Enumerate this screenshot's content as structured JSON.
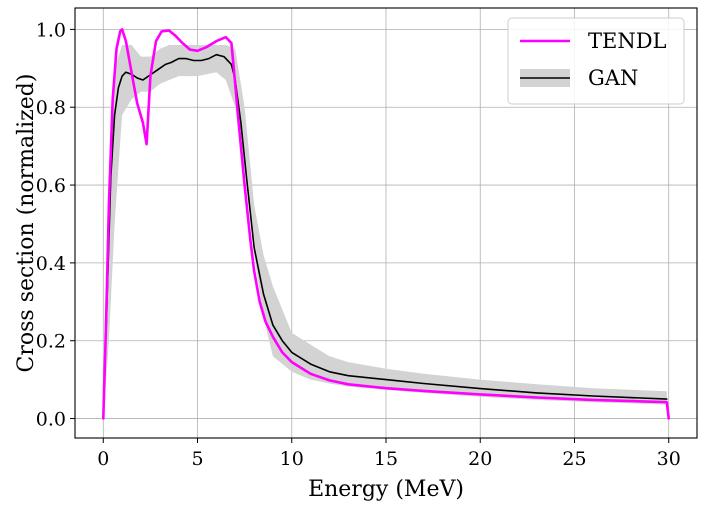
{
  "chart_data": {
    "type": "line",
    "title": "",
    "xlabel": "Energy (MeV)",
    "ylabel": "Cross section (normalized)",
    "xlim": [
      -1.5,
      31.5
    ],
    "ylim": [
      -0.05,
      1.055
    ],
    "xticks": [
      0,
      5,
      10,
      15,
      20,
      25,
      30
    ],
    "yticks": [
      0.0,
      0.2,
      0.4,
      0.6,
      0.8,
      1.0
    ],
    "xtick_labels": [
      "0",
      "5",
      "10",
      "15",
      "20",
      "25",
      "30"
    ],
    "ytick_labels": [
      "0.0",
      "0.2",
      "0.4",
      "0.6",
      "0.8",
      "1.0"
    ],
    "grid": true,
    "legend_position": "top-right",
    "colors": {
      "tendl": "#ff00ff",
      "gan": "#000000",
      "band": "#d3d3d3"
    },
    "series": [
      {
        "name": "TENDL",
        "style": "line",
        "x": [
          0,
          0.15,
          0.3,
          0.5,
          0.7,
          0.9,
          1.0,
          1.2,
          1.5,
          1.8,
          2.1,
          2.3,
          2.5,
          2.8,
          3.1,
          3.5,
          3.8,
          4.2,
          4.6,
          5.0,
          5.5,
          6.0,
          6.5,
          6.8,
          7.0,
          7.2,
          7.5,
          7.8,
          8.0,
          8.3,
          8.6,
          9.0,
          9.5,
          10,
          11,
          12,
          13,
          15,
          17,
          20,
          23,
          26,
          29.9,
          30.0
        ],
        "y": [
          0.0,
          0.25,
          0.55,
          0.82,
          0.95,
          0.995,
          1.0,
          0.97,
          0.89,
          0.81,
          0.76,
          0.705,
          0.88,
          0.97,
          0.995,
          0.997,
          0.985,
          0.965,
          0.948,
          0.945,
          0.955,
          0.97,
          0.98,
          0.965,
          0.86,
          0.75,
          0.6,
          0.46,
          0.38,
          0.3,
          0.25,
          0.21,
          0.17,
          0.145,
          0.115,
          0.098,
          0.088,
          0.078,
          0.071,
          0.062,
          0.054,
          0.048,
          0.042,
          0.0
        ]
      },
      {
        "name": "GAN",
        "style": "line",
        "x": [
          0,
          0.2,
          0.4,
          0.6,
          0.8,
          1.0,
          1.2,
          1.5,
          1.8,
          2.1,
          2.4,
          2.7,
          3.0,
          3.3,
          3.6,
          4.0,
          4.4,
          4.8,
          5.2,
          5.6,
          6.0,
          6.4,
          6.8,
          7.0,
          7.3,
          7.6,
          8.0,
          8.5,
          9.0,
          9.5,
          10,
          11,
          12,
          13,
          15,
          17,
          20,
          23,
          26,
          29.9
        ],
        "y": [
          0.0,
          0.3,
          0.62,
          0.78,
          0.85,
          0.88,
          0.89,
          0.885,
          0.875,
          0.87,
          0.88,
          0.89,
          0.9,
          0.91,
          0.915,
          0.925,
          0.925,
          0.92,
          0.92,
          0.925,
          0.935,
          0.93,
          0.91,
          0.87,
          0.76,
          0.62,
          0.44,
          0.32,
          0.24,
          0.2,
          0.17,
          0.14,
          0.12,
          0.11,
          0.1,
          0.09,
          0.077,
          0.066,
          0.058,
          0.05
        ]
      }
    ],
    "band": {
      "name": "GAN",
      "x": [
        0,
        0.3,
        0.6,
        1.0,
        1.5,
        2.0,
        2.5,
        3.0,
        3.5,
        4.0,
        5.0,
        6.0,
        6.5,
        7.0,
        7.5,
        8.0,
        8.5,
        9.0,
        10,
        11,
        12,
        13,
        15,
        17,
        20,
        23,
        26,
        29.9
      ],
      "upper": [
        0.0,
        0.6,
        0.9,
        0.96,
        0.96,
        0.93,
        0.93,
        0.95,
        0.96,
        0.96,
        0.96,
        0.96,
        0.96,
        0.95,
        0.8,
        0.55,
        0.42,
        0.34,
        0.22,
        0.19,
        0.16,
        0.145,
        0.128,
        0.115,
        0.1,
        0.088,
        0.078,
        0.07
      ],
      "lower": [
        0.0,
        0.2,
        0.5,
        0.78,
        0.82,
        0.84,
        0.84,
        0.86,
        0.87,
        0.88,
        0.88,
        0.89,
        0.87,
        0.8,
        0.64,
        0.42,
        0.26,
        0.16,
        0.12,
        0.1,
        0.09,
        0.082,
        0.074,
        0.066,
        0.056,
        0.048,
        0.042,
        0.036
      ]
    }
  }
}
